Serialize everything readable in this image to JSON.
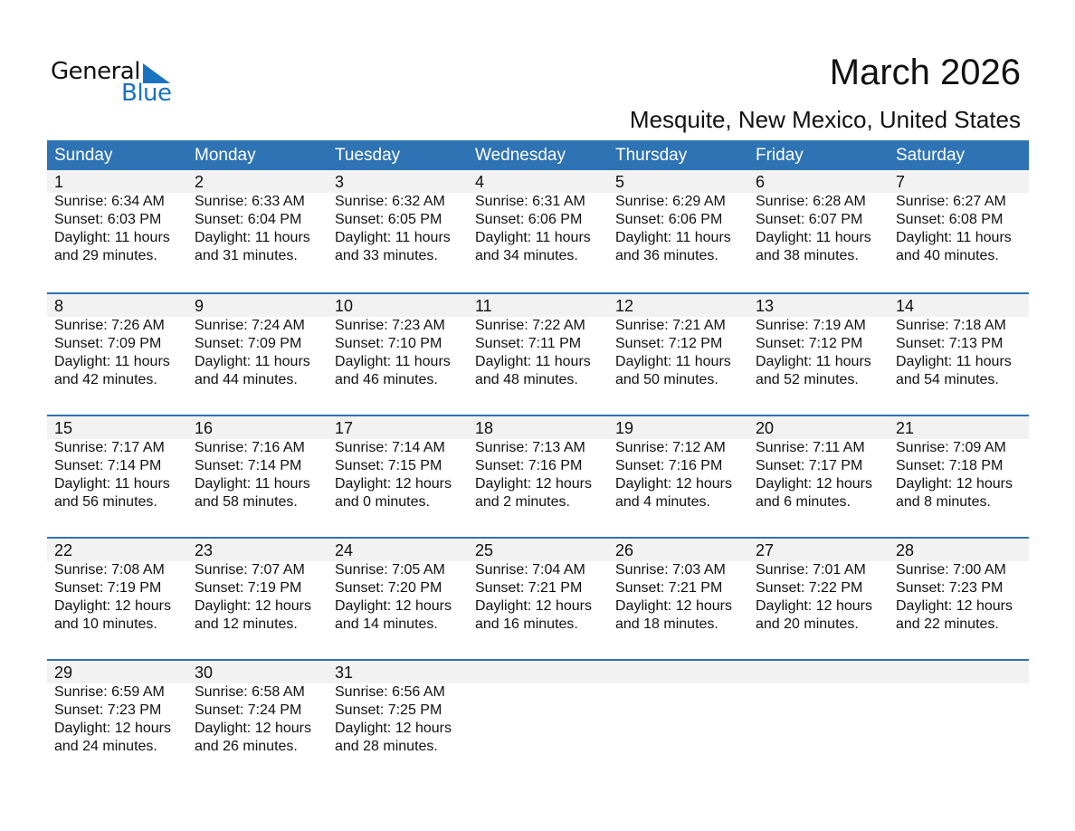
{
  "logo": {
    "text1": "General",
    "text2": "Blue"
  },
  "title": "March 2026",
  "subtitle": "Mesquite, New Mexico, United States",
  "colors": {
    "header": "#2e73b4",
    "accent": "#1a73c0",
    "day_row": "#f2f2f2"
  },
  "weekdays": [
    "Sunday",
    "Monday",
    "Tuesday",
    "Wednesday",
    "Thursday",
    "Friday",
    "Saturday"
  ],
  "weeks": [
    [
      {
        "day": "1",
        "sunrise": "Sunrise: 6:34 AM",
        "sunset": "Sunset: 6:03 PM",
        "daylight": "Daylight: 11 hours",
        "minutes": "and 29 minutes."
      },
      {
        "day": "2",
        "sunrise": "Sunrise: 6:33 AM",
        "sunset": "Sunset: 6:04 PM",
        "daylight": "Daylight: 11 hours",
        "minutes": "and 31 minutes."
      },
      {
        "day": "3",
        "sunrise": "Sunrise: 6:32 AM",
        "sunset": "Sunset: 6:05 PM",
        "daylight": "Daylight: 11 hours",
        "minutes": "and 33 minutes."
      },
      {
        "day": "4",
        "sunrise": "Sunrise: 6:31 AM",
        "sunset": "Sunset: 6:06 PM",
        "daylight": "Daylight: 11 hours",
        "minutes": "and 34 minutes."
      },
      {
        "day": "5",
        "sunrise": "Sunrise: 6:29 AM",
        "sunset": "Sunset: 6:06 PM",
        "daylight": "Daylight: 11 hours",
        "minutes": "and 36 minutes."
      },
      {
        "day": "6",
        "sunrise": "Sunrise: 6:28 AM",
        "sunset": "Sunset: 6:07 PM",
        "daylight": "Daylight: 11 hours",
        "minutes": "and 38 minutes."
      },
      {
        "day": "7",
        "sunrise": "Sunrise: 6:27 AM",
        "sunset": "Sunset: 6:08 PM",
        "daylight": "Daylight: 11 hours",
        "minutes": "and 40 minutes."
      }
    ],
    [
      {
        "day": "8",
        "sunrise": "Sunrise: 7:26 AM",
        "sunset": "Sunset: 7:09 PM",
        "daylight": "Daylight: 11 hours",
        "minutes": "and 42 minutes."
      },
      {
        "day": "9",
        "sunrise": "Sunrise: 7:24 AM",
        "sunset": "Sunset: 7:09 PM",
        "daylight": "Daylight: 11 hours",
        "minutes": "and 44 minutes."
      },
      {
        "day": "10",
        "sunrise": "Sunrise: 7:23 AM",
        "sunset": "Sunset: 7:10 PM",
        "daylight": "Daylight: 11 hours",
        "minutes": "and 46 minutes."
      },
      {
        "day": "11",
        "sunrise": "Sunrise: 7:22 AM",
        "sunset": "Sunset: 7:11 PM",
        "daylight": "Daylight: 11 hours",
        "minutes": "and 48 minutes."
      },
      {
        "day": "12",
        "sunrise": "Sunrise: 7:21 AM",
        "sunset": "Sunset: 7:12 PM",
        "daylight": "Daylight: 11 hours",
        "minutes": "and 50 minutes."
      },
      {
        "day": "13",
        "sunrise": "Sunrise: 7:19 AM",
        "sunset": "Sunset: 7:12 PM",
        "daylight": "Daylight: 11 hours",
        "minutes": "and 52 minutes."
      },
      {
        "day": "14",
        "sunrise": "Sunrise: 7:18 AM",
        "sunset": "Sunset: 7:13 PM",
        "daylight": "Daylight: 11 hours",
        "minutes": "and 54 minutes."
      }
    ],
    [
      {
        "day": "15",
        "sunrise": "Sunrise: 7:17 AM",
        "sunset": "Sunset: 7:14 PM",
        "daylight": "Daylight: 11 hours",
        "minutes": "and 56 minutes."
      },
      {
        "day": "16",
        "sunrise": "Sunrise: 7:16 AM",
        "sunset": "Sunset: 7:14 PM",
        "daylight": "Daylight: 11 hours",
        "minutes": "and 58 minutes."
      },
      {
        "day": "17",
        "sunrise": "Sunrise: 7:14 AM",
        "sunset": "Sunset: 7:15 PM",
        "daylight": "Daylight: 12 hours",
        "minutes": "and 0 minutes."
      },
      {
        "day": "18",
        "sunrise": "Sunrise: 7:13 AM",
        "sunset": "Sunset: 7:16 PM",
        "daylight": "Daylight: 12 hours",
        "minutes": "and 2 minutes."
      },
      {
        "day": "19",
        "sunrise": "Sunrise: 7:12 AM",
        "sunset": "Sunset: 7:16 PM",
        "daylight": "Daylight: 12 hours",
        "minutes": "and 4 minutes."
      },
      {
        "day": "20",
        "sunrise": "Sunrise: 7:11 AM",
        "sunset": "Sunset: 7:17 PM",
        "daylight": "Daylight: 12 hours",
        "minutes": "and 6 minutes."
      },
      {
        "day": "21",
        "sunrise": "Sunrise: 7:09 AM",
        "sunset": "Sunset: 7:18 PM",
        "daylight": "Daylight: 12 hours",
        "minutes": "and 8 minutes."
      }
    ],
    [
      {
        "day": "22",
        "sunrise": "Sunrise: 7:08 AM",
        "sunset": "Sunset: 7:19 PM",
        "daylight": "Daylight: 12 hours",
        "minutes": "and 10 minutes."
      },
      {
        "day": "23",
        "sunrise": "Sunrise: 7:07 AM",
        "sunset": "Sunset: 7:19 PM",
        "daylight": "Daylight: 12 hours",
        "minutes": "and 12 minutes."
      },
      {
        "day": "24",
        "sunrise": "Sunrise: 7:05 AM",
        "sunset": "Sunset: 7:20 PM",
        "daylight": "Daylight: 12 hours",
        "minutes": "and 14 minutes."
      },
      {
        "day": "25",
        "sunrise": "Sunrise: 7:04 AM",
        "sunset": "Sunset: 7:21 PM",
        "daylight": "Daylight: 12 hours",
        "minutes": "and 16 minutes."
      },
      {
        "day": "26",
        "sunrise": "Sunrise: 7:03 AM",
        "sunset": "Sunset: 7:21 PM",
        "daylight": "Daylight: 12 hours",
        "minutes": "and 18 minutes."
      },
      {
        "day": "27",
        "sunrise": "Sunrise: 7:01 AM",
        "sunset": "Sunset: 7:22 PM",
        "daylight": "Daylight: 12 hours",
        "minutes": "and 20 minutes."
      },
      {
        "day": "28",
        "sunrise": "Sunrise: 7:00 AM",
        "sunset": "Sunset: 7:23 PM",
        "daylight": "Daylight: 12 hours",
        "minutes": "and 22 minutes."
      }
    ],
    [
      {
        "day": "29",
        "sunrise": "Sunrise: 6:59 AM",
        "sunset": "Sunset: 7:23 PM",
        "daylight": "Daylight: 12 hours",
        "minutes": "and 24 minutes."
      },
      {
        "day": "30",
        "sunrise": "Sunrise: 6:58 AM",
        "sunset": "Sunset: 7:24 PM",
        "daylight": "Daylight: 12 hours",
        "minutes": "and 26 minutes."
      },
      {
        "day": "31",
        "sunrise": "Sunrise: 6:56 AM",
        "sunset": "Sunset: 7:25 PM",
        "daylight": "Daylight: 12 hours",
        "minutes": "and 28 minutes."
      }
    ]
  ]
}
